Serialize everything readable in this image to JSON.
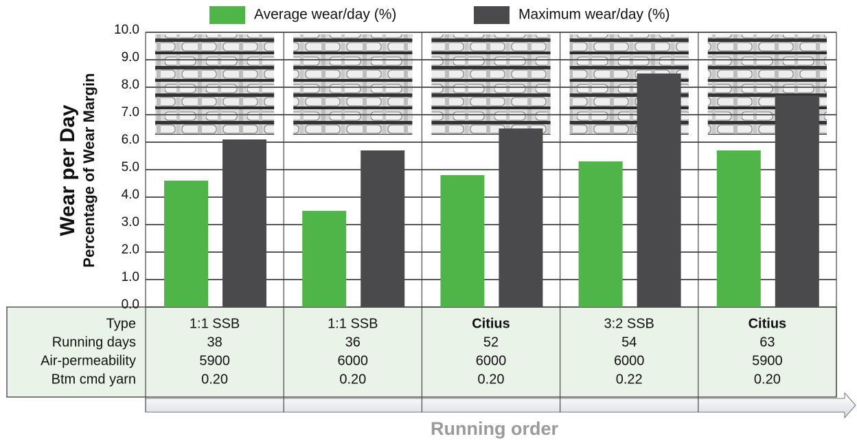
{
  "chart_data": {
    "type": "bar",
    "y_label": "Wear per Day",
    "y_sublabel": "Percentage of Wear Margin",
    "x_label": "Running order",
    "legend_position": "top",
    "grid": true,
    "ylim": [
      0,
      10
    ],
    "yticks": [
      {
        "value": 0,
        "label": "0.0"
      },
      {
        "value": 1,
        "label": "1.0"
      },
      {
        "value": 2,
        "label": "2.0"
      },
      {
        "value": 3,
        "label": "3.0"
      },
      {
        "value": 4,
        "label": "4.0"
      },
      {
        "value": 5,
        "label": "5.0"
      },
      {
        "value": 6,
        "label": "6.0"
      },
      {
        "value": 7,
        "label": "7.0"
      },
      {
        "value": 8,
        "label": "8.0"
      },
      {
        "value": 9,
        "label": "9.0"
      },
      {
        "value": 10,
        "label": "10.0"
      }
    ],
    "categories": [
      null,
      null,
      null,
      null,
      null
    ],
    "series": [
      {
        "name": "Average wear/day (%)",
        "color": "#4fb548",
        "values": [
          4.6,
          3.5,
          4.8,
          5.3,
          5.7
        ]
      },
      {
        "name": "Maximum wear/day (%)",
        "color": "#4a4a4d",
        "values": [
          6.1,
          5.7,
          6.5,
          8.5,
          7.7
        ]
      }
    ],
    "table": {
      "row_labels": [
        "Type",
        "Running days",
        "Air-permeability",
        "Btm cmd yarn"
      ],
      "bold_columns": [
        false,
        false,
        true,
        false,
        true
      ],
      "columns": [
        [
          "1:1 SSB",
          "38",
          "5900",
          "0.20"
        ],
        [
          "1:1 SSB",
          "36",
          "6000",
          "0.20"
        ],
        [
          "Citius",
          "52",
          "6000",
          "0.20"
        ],
        [
          "3:2 SSB",
          "54",
          "6000",
          "0.22"
        ],
        [
          "Citius",
          "63",
          "5900",
          "0.20"
        ]
      ]
    }
  }
}
